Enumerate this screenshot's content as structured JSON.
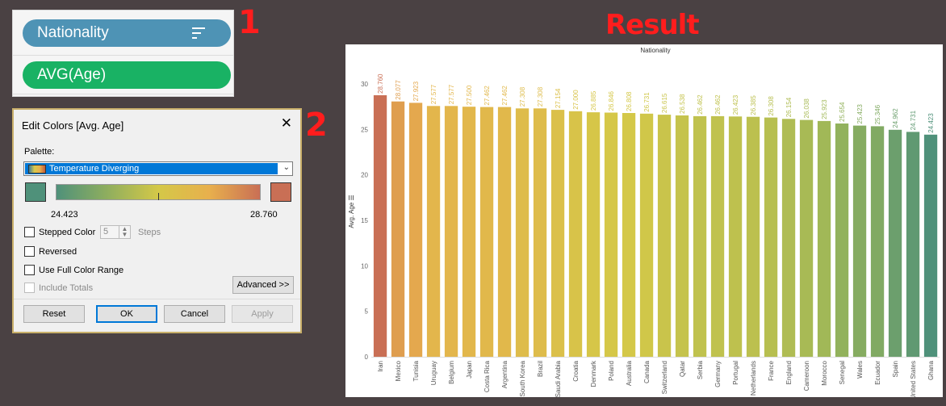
{
  "annotations": {
    "step1": "1",
    "step2": "2",
    "result": "Result"
  },
  "pills": [
    {
      "label": "Nationality",
      "color": "#4e93b5",
      "icon": "sort-descending-icon"
    },
    {
      "label": "AVG(Age)",
      "color": "#19b264"
    }
  ],
  "dialog": {
    "title": "Edit Colors [Avg. Age]",
    "close": "✕",
    "palette_label": "Palette:",
    "palette_value": "Temperature Diverging",
    "start_color": "#4f917a",
    "end_color": "#c96f55",
    "min_value": "24.423",
    "max_value": "28.760",
    "stepped_color": {
      "label": "Stepped Color",
      "checked": false
    },
    "steps": {
      "value": "5",
      "label": "Steps"
    },
    "reversed": {
      "label": "Reversed",
      "checked": false
    },
    "full_range": {
      "label": "Use Full Color Range",
      "checked": false
    },
    "include_totals": {
      "label": "Include Totals",
      "checked": false,
      "disabled": true
    },
    "buttons": {
      "advanced": "Advanced >>",
      "reset": "Reset",
      "ok": "OK",
      "cancel": "Cancel",
      "apply": "Apply"
    }
  },
  "chart_data": {
    "type": "bar",
    "title": "Nationality",
    "ylabel": "Avg. Age",
    "ylim": [
      0,
      30
    ],
    "yticks": [
      0,
      5,
      10,
      15,
      20,
      25,
      30
    ],
    "grid": false,
    "categories": [
      "Iran",
      "Mexico",
      "Tunisia",
      "Uruguay",
      "Belgium",
      "Japan",
      "Costa Rica",
      "Argentina",
      "South Korea",
      "Brazil",
      "Saudi Arabia",
      "Croatia",
      "Denmark",
      "Poland",
      "Australia",
      "Canada",
      "Switzerland",
      "Qatar",
      "Serbia",
      "Germany",
      "Portugal",
      "Netherlands",
      "France",
      "England",
      "Cameroon",
      "Morocco",
      "Senegal",
      "Wales",
      "Ecuador",
      "Spain",
      "United States",
      "Ghana"
    ],
    "values": [
      28.76,
      28.077,
      27.923,
      27.577,
      27.577,
      27.5,
      27.462,
      27.462,
      27.308,
      27.308,
      27.154,
      27.0,
      26.885,
      26.846,
      26.808,
      26.731,
      26.615,
      26.538,
      26.462,
      26.462,
      26.423,
      26.385,
      26.308,
      26.154,
      26.038,
      25.923,
      25.654,
      25.423,
      25.346,
      24.962,
      24.731,
      24.423
    ],
    "labels": [
      "28.760",
      "28.077",
      "27.923",
      "27.577",
      "27.577",
      "27.500",
      "27.462",
      "27.462",
      "27.308",
      "27.308",
      "27.154",
      "27.000",
      "26.885",
      "26.846",
      "26.808",
      "26.731",
      "26.615",
      "26.538",
      "26.462",
      "26.462",
      "26.423",
      "26.385",
      "26.308",
      "26.154",
      "26.038",
      "25.923",
      "25.654",
      "25.423",
      "25.346",
      "24.962",
      "24.731",
      "24.423"
    ],
    "color_scale": {
      "min": 24.423,
      "max": 28.76,
      "palette": "Temperature Diverging"
    }
  }
}
